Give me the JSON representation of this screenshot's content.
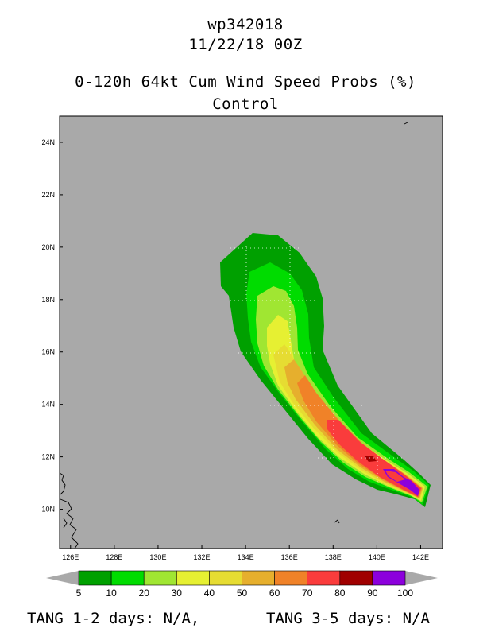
{
  "header": {
    "storm_id": "wp342018",
    "datetime": "11/22/18 00Z",
    "product": "0-120h 64kt Cum Wind Speed Probs (%)",
    "member": "Control"
  },
  "map": {
    "background_color": "#a9a9a9",
    "lon_range": [
      125.5,
      143
    ],
    "lat_range": [
      8.5,
      25
    ],
    "lon_ticks": [
      "126E",
      "128E",
      "130E",
      "132E",
      "134E",
      "136E",
      "138E",
      "140E",
      "142E"
    ],
    "lat_ticks": [
      "10N",
      "12N",
      "14N",
      "16N",
      "18N",
      "20N",
      "22N",
      "24N"
    ]
  },
  "colorbar": {
    "levels": [
      "5",
      "10",
      "20",
      "30",
      "40",
      "50",
      "60",
      "70",
      "80",
      "90",
      "100"
    ],
    "colors": [
      "#00a000",
      "#00dc00",
      "#a0e632",
      "#e6f032",
      "#e6dc32",
      "#e6af2d",
      "#f08228",
      "#fa3c3c",
      "#a00000",
      "#8c00dc"
    ]
  },
  "footer": {
    "tang_1_2": "TANG 1-2 days:  N/A,",
    "tang_3_5": "TANG 3-5 days:  N/A"
  }
}
